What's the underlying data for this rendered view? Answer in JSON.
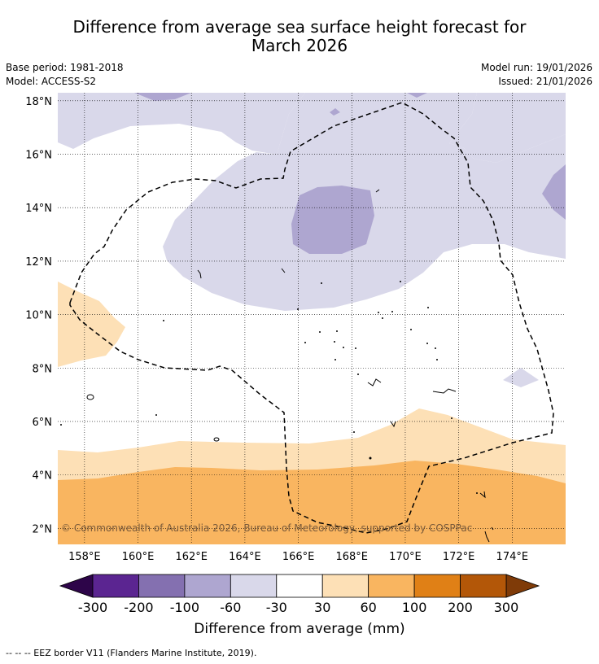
{
  "title_line1": "Difference from average sea surface height forecast for",
  "title_line2": "March 2026",
  "meta": {
    "base_period": "Base period: 1981-2018",
    "model": "Model: ACCESS-S2",
    "model_run": "Model run: 19/01/2026",
    "issued": "Issued: 21/01/2026"
  },
  "map": {
    "lat_labels": [
      "18°N",
      "16°N",
      "14°N",
      "12°N",
      "10°N",
      "8°N",
      "6°N",
      "4°N",
      "2°N"
    ],
    "lat_values": [
      18,
      16,
      14,
      12,
      10,
      8,
      6,
      4,
      2
    ],
    "lon_labels": [
      "158°E",
      "160°E",
      "162°E",
      "164°E",
      "166°E",
      "168°E",
      "170°E",
      "172°E",
      "174°E"
    ],
    "lon_values": [
      158,
      160,
      162,
      164,
      166,
      168,
      170,
      172,
      174
    ],
    "lon_range": [
      157,
      176
    ],
    "lat_range": [
      1.4,
      18.3
    ],
    "copyright": "© Commonwealth of Australia 2026, Bureau of Meteorology, supported by COSPPac"
  },
  "colorbar": {
    "ticks": [
      "-300",
      "-200",
      "-100",
      "-60",
      "-30",
      "30",
      "60",
      "100",
      "200",
      "300"
    ],
    "colors": [
      "#5b2591",
      "#8470b0",
      "#aea6d0",
      "#d9d8ea",
      "#ffffff",
      "#fde0b6",
      "#f9b560",
      "#e08016",
      "#b35708"
    ],
    "extend_low_color": "#2d0549",
    "extend_high_color": "#7f3b08",
    "label": "Difference from average (mm)"
  },
  "footnote": "-- -- -- EEZ border V11 (Flanders Marine Institute, 2019)."
}
